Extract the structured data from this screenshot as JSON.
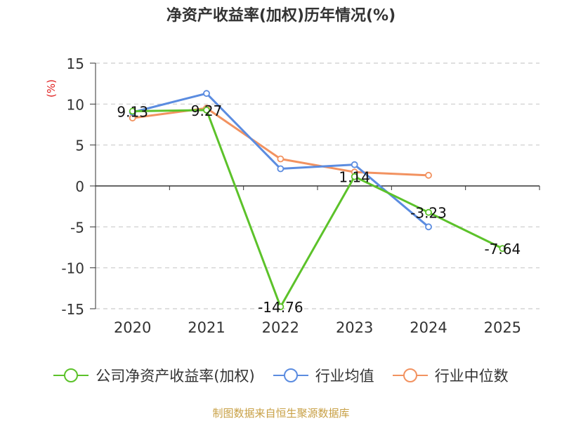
{
  "chart_data": {
    "type": "line",
    "title": "净资产收益率(加权)历年情况(%)",
    "ylabel": "(%)",
    "categories": [
      "2020",
      "2021",
      "2022",
      "2023",
      "2024",
      "2025"
    ],
    "ylim": [
      -15,
      15
    ],
    "yticks": [
      15,
      10,
      5,
      0,
      -5,
      -10,
      -15
    ],
    "grid": true,
    "legend_position": "bottom",
    "series": [
      {
        "name": "公司净资产收益率(加权)",
        "color": "#5cc22a",
        "values": [
          9.13,
          9.27,
          -14.76,
          1.14,
          -3.23,
          -7.64
        ],
        "labels": [
          "9.13",
          "9.27",
          "-14.76",
          "1.14",
          "-3.23",
          "-7.64"
        ]
      },
      {
        "name": "行业均值",
        "color": "#5b8ce0",
        "values": [
          9.0,
          11.3,
          2.1,
          2.6,
          -5.0,
          null
        ]
      },
      {
        "name": "行业中位数",
        "color": "#f29260",
        "values": [
          8.3,
          9.5,
          3.3,
          1.7,
          1.3,
          null
        ]
      }
    ]
  },
  "source": "制图数据来自恒生聚源数据库"
}
